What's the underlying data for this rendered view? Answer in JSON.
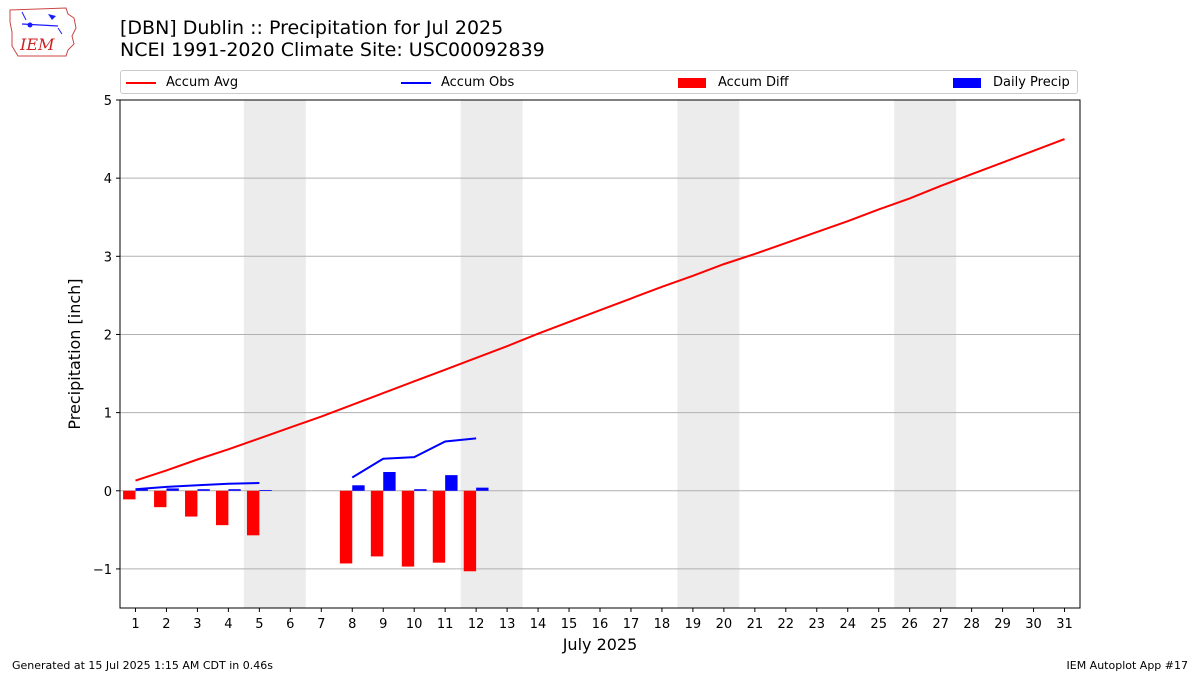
{
  "header": {
    "title_line1": "[DBN] Dublin :: Precipitation for Jul 2025",
    "title_line2": "NCEI 1991-2020 Climate Site: USC00092839"
  },
  "logo": {
    "text": "IEM"
  },
  "legend": [
    {
      "label": "Accum Avg",
      "kind": "line",
      "color": "#ff0000"
    },
    {
      "label": "Accum Obs",
      "kind": "line",
      "color": "#0000ff"
    },
    {
      "label": "Accum Diff",
      "kind": "rect",
      "color": "#ff0000"
    },
    {
      "label": "Daily Precip",
      "kind": "rect",
      "color": "#0000ff"
    }
  ],
  "footer": {
    "left": "Generated at 15 Jul 2025 1:15 AM CDT in 0.46s",
    "right": "IEM Autoplot App #17"
  },
  "chart_data": {
    "type": "bar",
    "xlabel": "July 2025",
    "ylabel": "Precipitation [inch]",
    "xlim": [
      0.5,
      31.5
    ],
    "ylim": [
      -1.5,
      5
    ],
    "yticks": [
      -1,
      0,
      1,
      2,
      3,
      4,
      5
    ],
    "ytick_labels": [
      "−1",
      "0",
      "1",
      "2",
      "3",
      "4",
      "5"
    ],
    "x": [
      1,
      2,
      3,
      4,
      5,
      6,
      7,
      8,
      9,
      10,
      11,
      12,
      13,
      14,
      15,
      16,
      17,
      18,
      19,
      20,
      21,
      22,
      23,
      24,
      25,
      26,
      27,
      28,
      29,
      30,
      31
    ],
    "weekend_shading": [
      [
        4.5,
        6.5
      ],
      [
        11.5,
        13.5
      ],
      [
        18.5,
        20.5
      ],
      [
        25.5,
        27.5
      ]
    ],
    "grid": "horizontal",
    "colors": {
      "avg": "#ff0000",
      "obs": "#0000ff",
      "diff": "#ff0000",
      "daily": "#0000ff",
      "weekend": "#ececec",
      "grid": "#b0b0b0"
    },
    "series": [
      {
        "name": "Accum Avg",
        "kind": "line",
        "x": [
          1,
          2,
          3,
          4,
          5,
          6,
          7,
          8,
          9,
          10,
          11,
          12,
          13,
          14,
          15,
          16,
          17,
          18,
          19,
          20,
          21,
          22,
          23,
          24,
          25,
          26,
          27,
          28,
          29,
          30,
          31
        ],
        "values": [
          0.13,
          0.26,
          0.4,
          0.53,
          0.67,
          0.81,
          0.95,
          1.1,
          1.25,
          1.4,
          1.55,
          1.7,
          1.85,
          2.01,
          2.16,
          2.31,
          2.46,
          2.61,
          2.75,
          2.9,
          3.03,
          3.17,
          3.31,
          3.45,
          3.6,
          3.74,
          3.9,
          4.05,
          4.2,
          4.35,
          4.5
        ]
      },
      {
        "name": "Accum Obs",
        "kind": "line",
        "segments": [
          {
            "x": [
              1,
              2,
              3,
              4,
              5
            ],
            "values": [
              0.02,
              0.05,
              0.07,
              0.09,
              0.1
            ]
          },
          {
            "x": [
              8,
              9,
              10,
              11,
              12
            ],
            "values": [
              0.17,
              0.41,
              0.43,
              0.63,
              0.67
            ]
          }
        ]
      },
      {
        "name": "Accum Diff",
        "kind": "bar",
        "x": [
          1,
          2,
          3,
          4,
          5,
          8,
          9,
          10,
          11,
          12
        ],
        "values": [
          -0.11,
          -0.21,
          -0.33,
          -0.44,
          -0.57,
          -0.93,
          -0.84,
          -0.97,
          -0.92,
          -1.03
        ]
      },
      {
        "name": "Daily Precip",
        "kind": "bar",
        "x": [
          1,
          2,
          3,
          4,
          5,
          8,
          9,
          10,
          11,
          12
        ],
        "values": [
          0.02,
          0.03,
          0.02,
          0.02,
          0.01,
          0.07,
          0.24,
          0.02,
          0.2,
          0.04
        ]
      }
    ]
  }
}
